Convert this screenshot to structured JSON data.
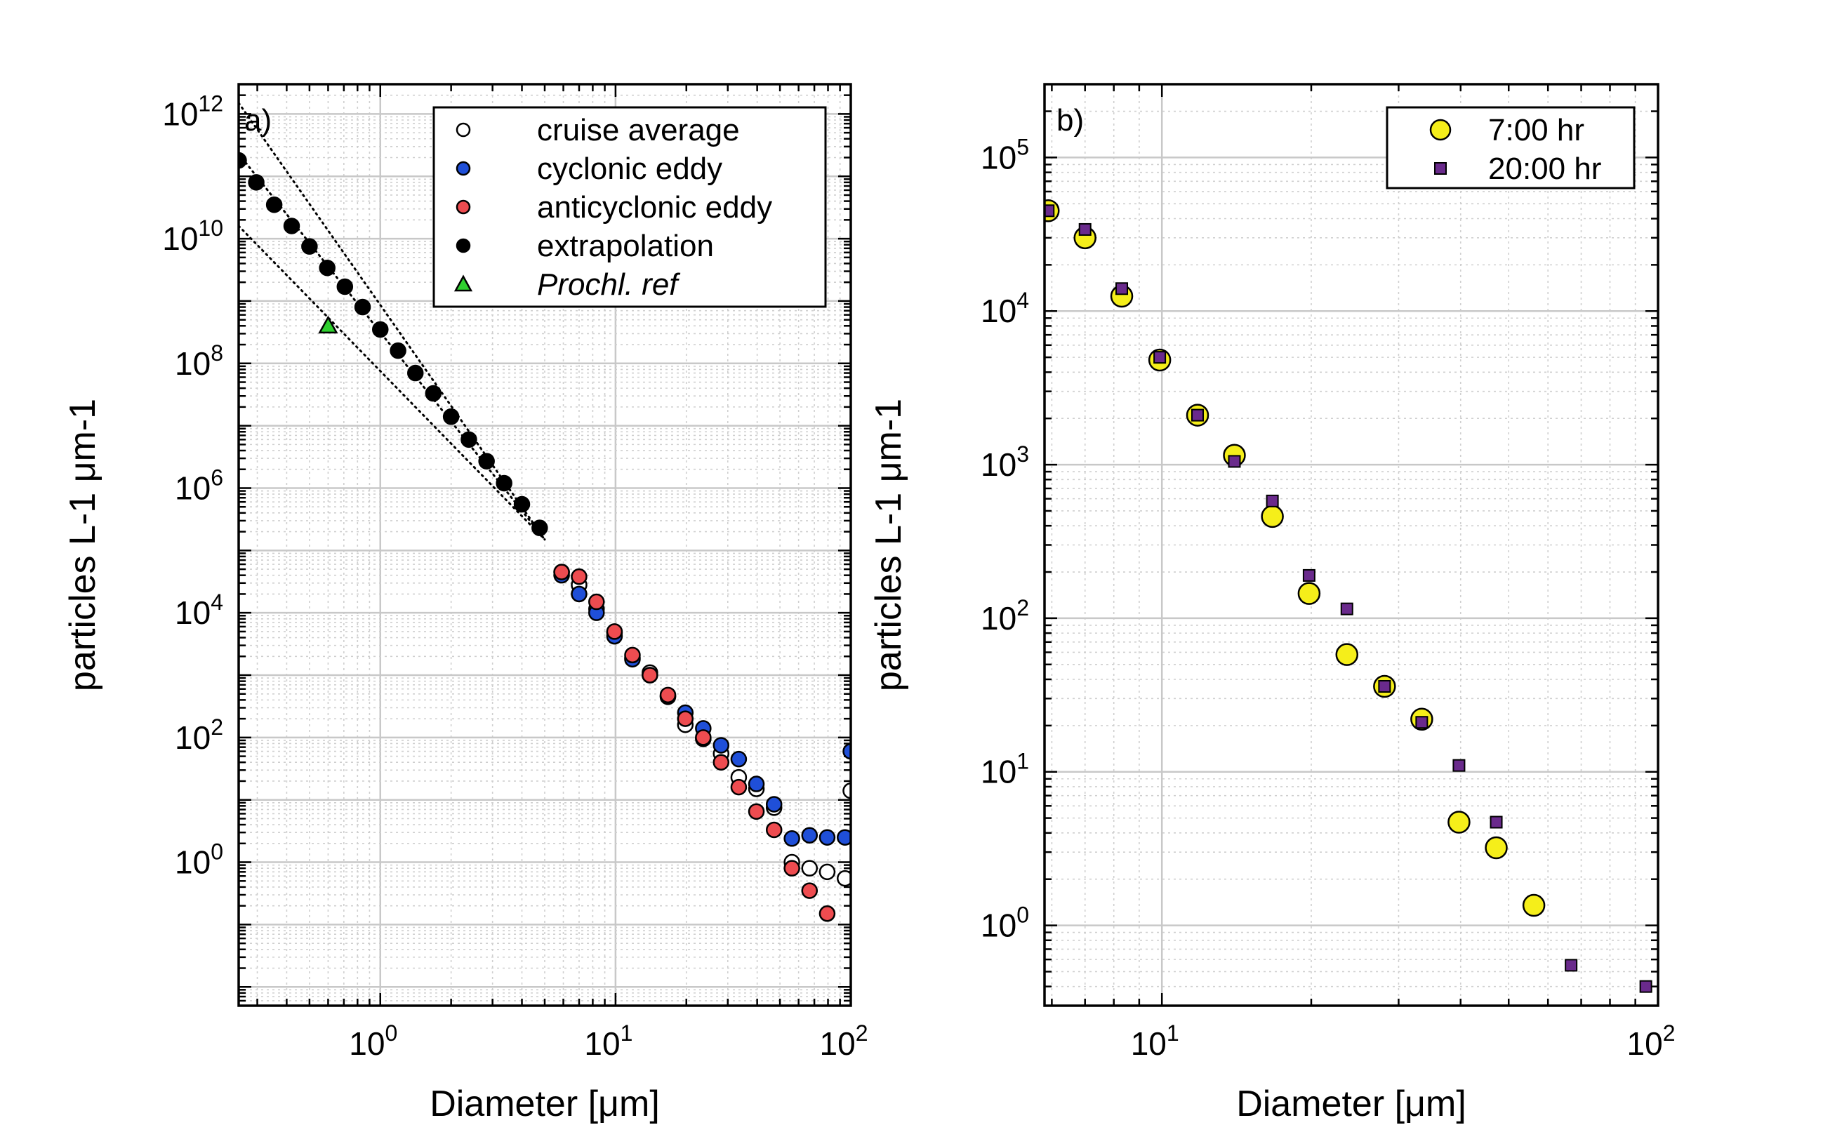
{
  "chart_data": [
    {
      "type": "scatter",
      "panel_label": "a)",
      "xlabel": "Diameter [μm]",
      "ylabel": "particles L-1 μm-1",
      "xscale": "log",
      "yscale": "log",
      "xlim": [
        0.25,
        100
      ],
      "ylim": [
        0.005,
        3000000000000.0
      ],
      "xticks": [
        {
          "v": 1,
          "exp": "0"
        },
        {
          "v": 10,
          "exp": "1"
        },
        {
          "v": 100,
          "exp": "2"
        }
      ],
      "yticks": [
        {
          "v": 1,
          "exp": "0"
        },
        {
          "v": 100,
          "exp": "2"
        },
        {
          "v": 10000,
          "exp": "4"
        },
        {
          "v": 1000000,
          "exp": "6"
        },
        {
          "v": 100000000,
          "exp": "8"
        },
        {
          "v": 10000000000,
          "exp": "10"
        },
        {
          "v": 1000000000000,
          "exp": "12"
        }
      ],
      "grid": true,
      "legend": "top-right",
      "series": [
        {
          "name": "cruise average",
          "marker": "circle",
          "color": "#ffffff",
          "x": [
            5.9,
            7.0,
            8.3,
            9.9,
            11.8,
            14.0,
            16.7,
            19.8,
            23.6,
            28.1,
            33.4,
            39.7,
            47.2,
            56.2,
            66.8,
            79.4,
            94.5,
            100
          ],
          "y": [
            45000,
            28000,
            11500,
            4800,
            1900,
            1100,
            460,
            160,
            95,
            55,
            23,
            15,
            7.5,
            1.0,
            0.8,
            0.7,
            0.55,
            14
          ]
        },
        {
          "name": "cyclonic eddy",
          "marker": "circle",
          "color": "#1f4fd8",
          "x": [
            5.9,
            7.0,
            8.3,
            9.9,
            11.8,
            14.0,
            16.7,
            19.8,
            23.6,
            28.1,
            33.4,
            39.7,
            47.2,
            56.2,
            66.8,
            79.4,
            94.5,
            100
          ],
          "y": [
            40000,
            20000,
            10000,
            4200,
            1800,
            1000,
            450,
            250,
            140,
            75,
            45,
            18,
            8.5,
            2.4,
            2.7,
            2.5,
            2.5,
            60
          ]
        },
        {
          "name": "anticyclonic eddy",
          "marker": "circle",
          "color": "#ee4c50",
          "x": [
            5.9,
            7.0,
            8.3,
            9.9,
            11.8,
            14.0,
            16.7,
            19.8,
            23.6,
            28.1,
            33.4,
            39.7,
            47.2,
            56.2,
            66.8,
            79.4
          ],
          "y": [
            45000,
            38000,
            15000,
            5000,
            2100,
            1000,
            480,
            200,
            100,
            40,
            16,
            6.5,
            3.3,
            0.8,
            0.35,
            0.15
          ]
        },
        {
          "name": "extrapolation",
          "marker": "circle",
          "color": "#000000",
          "x": [
            0.25,
            0.297,
            0.354,
            0.42,
            0.5,
            0.595,
            0.707,
            0.841,
            1.0,
            1.19,
            1.41,
            1.68,
            2.0,
            2.38,
            2.83,
            3.36,
            4.0,
            4.76
          ],
          "y": [
            180000000000,
            80000000000,
            35000000000,
            16000000000,
            7500000000,
            3400000000,
            1700000000,
            800000000,
            350000000,
            160000000,
            70000000,
            33000000,
            14000000,
            6000000,
            2700000,
            1200000,
            550000,
            230000
          ]
        },
        {
          "name": "Prochl. ref",
          "marker": "triangle",
          "color": "#2fd02f",
          "x": [
            0.6
          ],
          "y": [
            400000000
          ]
        }
      ],
      "reference_lines": [
        {
          "style": "dotted",
          "x": [
            0.25,
            5.0
          ],
          "y": [
            1500000000000.0,
            150000
          ]
        },
        {
          "style": "dotted",
          "x": [
            0.25,
            5.0
          ],
          "y": [
            16000000000.0,
            150000
          ]
        },
        {
          "style": "dotted",
          "x": [
            0.25,
            5.0
          ],
          "y": [
            230000000000.0,
            150000
          ]
        }
      ]
    },
    {
      "type": "scatter",
      "panel_label": "b)",
      "xlabel": "Diameter [μm]",
      "ylabel": "particles L-1 μm-1",
      "xscale": "log",
      "yscale": "log",
      "xlim": [
        5.8,
        100
      ],
      "ylim": [
        0.3,
        300000
      ],
      "xticks": [
        {
          "v": 10,
          "exp": "1"
        },
        {
          "v": 100,
          "exp": "2"
        }
      ],
      "yticks": [
        {
          "v": 1,
          "exp": "0"
        },
        {
          "v": 10,
          "exp": "1"
        },
        {
          "v": 100,
          "exp": "2"
        },
        {
          "v": 1000,
          "exp": "3"
        },
        {
          "v": 10000,
          "exp": "4"
        },
        {
          "v": 100000,
          "exp": "5"
        }
      ],
      "grid": true,
      "legend": "top-right",
      "series": [
        {
          "name": "7:00 hr",
          "marker": "circle",
          "color": "#f5ee1a",
          "x": [
            5.9,
            7.0,
            8.3,
            9.9,
            11.8,
            14.0,
            16.7,
            19.8,
            23.6,
            28.1,
            33.4,
            39.7,
            47.2,
            56.2
          ],
          "y": [
            45000,
            30000,
            12500,
            4800,
            2100,
            1150,
            460,
            145,
            58,
            36,
            22,
            4.7,
            3.2,
            1.35
          ]
        },
        {
          "name": "20:00 hr",
          "marker": "square",
          "color": "#6a2a8c",
          "x": [
            5.9,
            7.0,
            8.3,
            9.9,
            11.8,
            14.0,
            16.7,
            19.8,
            23.6,
            28.1,
            33.4,
            39.7,
            47.2,
            66.8,
            94.5
          ],
          "y": [
            45000,
            34000,
            14000,
            5000,
            2100,
            1050,
            580,
            190,
            115,
            36,
            21,
            11,
            4.7,
            0.55,
            0.4
          ]
        }
      ]
    }
  ]
}
